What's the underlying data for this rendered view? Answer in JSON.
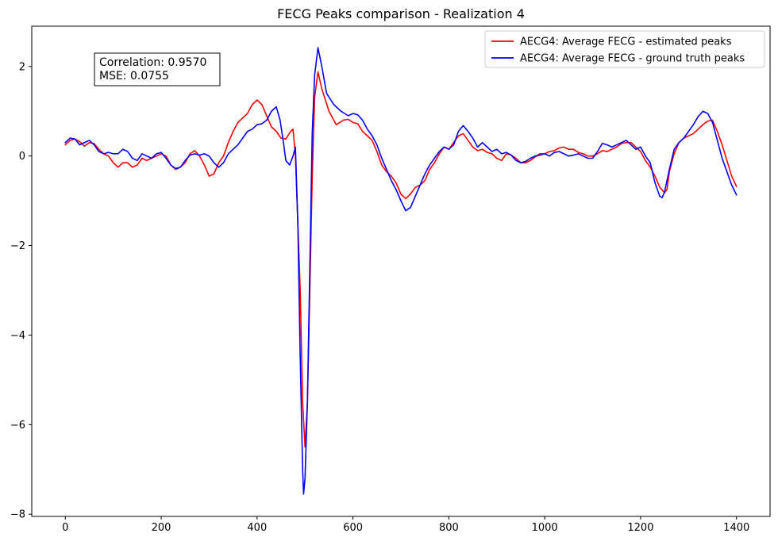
{
  "chart_data": {
    "type": "line",
    "title": "FECG Peaks comparison - Realization 4",
    "xlabel": "",
    "ylabel": "",
    "xlim": [
      -70,
      1470
    ],
    "ylim": [
      -8.05,
      2.9
    ],
    "xticks": [
      0,
      200,
      400,
      600,
      800,
      1000,
      1200,
      1400
    ],
    "xtick_labels": [
      "0",
      "200",
      "400",
      "600",
      "800",
      "1000",
      "1200",
      "1400"
    ],
    "yticks": [
      -8,
      -6,
      -4,
      -2,
      0,
      2
    ],
    "ytick_labels": [
      "−8",
      "−6",
      "−4",
      "−2",
      "0",
      "2"
    ],
    "grid": false,
    "legend_position": "top-right",
    "annotation": {
      "lines": [
        "Correlation: 0.9570",
        "MSE: 0.0755"
      ],
      "position": "top-left"
    },
    "series": [
      {
        "name": "AECG4: Average FECG - estimated peaks",
        "color": "#ff0000",
        "points": [
          [
            0,
            0.25
          ],
          [
            10,
            0.35
          ],
          [
            20,
            0.38
          ],
          [
            30,
            0.32
          ],
          [
            40,
            0.22
          ],
          [
            50,
            0.3
          ],
          [
            60,
            0.28
          ],
          [
            70,
            0.15
          ],
          [
            80,
            0.05
          ],
          [
            90,
            0.0
          ],
          [
            100,
            -0.15
          ],
          [
            110,
            -0.25
          ],
          [
            120,
            -0.15
          ],
          [
            130,
            -0.15
          ],
          [
            140,
            -0.25
          ],
          [
            150,
            -0.2
          ],
          [
            160,
            -0.05
          ],
          [
            170,
            -0.1
          ],
          [
            180,
            -0.05
          ],
          [
            190,
            0.0
          ],
          [
            200,
            0.05
          ],
          [
            210,
            0.0
          ],
          [
            220,
            -0.2
          ],
          [
            230,
            -0.3
          ],
          [
            240,
            -0.25
          ],
          [
            250,
            -0.15
          ],
          [
            260,
            0.05
          ],
          [
            270,
            0.12
          ],
          [
            280,
            0.0
          ],
          [
            290,
            -0.2
          ],
          [
            300,
            -0.45
          ],
          [
            310,
            -0.4
          ],
          [
            320,
            -0.15
          ],
          [
            330,
            0.0
          ],
          [
            340,
            0.3
          ],
          [
            350,
            0.55
          ],
          [
            360,
            0.75
          ],
          [
            370,
            0.85
          ],
          [
            380,
            0.95
          ],
          [
            390,
            1.15
          ],
          [
            400,
            1.25
          ],
          [
            410,
            1.15
          ],
          [
            420,
            0.9
          ],
          [
            430,
            0.65
          ],
          [
            440,
            0.55
          ],
          [
            450,
            0.4
          ],
          [
            460,
            0.38
          ],
          [
            470,
            0.55
          ],
          [
            475,
            0.6
          ],
          [
            480,
            0.0
          ],
          [
            490,
            -3.0
          ],
          [
            495,
            -5.5
          ],
          [
            500,
            -6.5
          ],
          [
            505,
            -5.5
          ],
          [
            510,
            -3.0
          ],
          [
            515,
            -0.5
          ],
          [
            520,
            1.3
          ],
          [
            527,
            1.88
          ],
          [
            535,
            1.5
          ],
          [
            550,
            1.0
          ],
          [
            565,
            0.7
          ],
          [
            580,
            0.8
          ],
          [
            590,
            0.82
          ],
          [
            600,
            0.75
          ],
          [
            610,
            0.72
          ],
          [
            620,
            0.55
          ],
          [
            630,
            0.45
          ],
          [
            640,
            0.35
          ],
          [
            650,
            0.1
          ],
          [
            660,
            -0.2
          ],
          [
            670,
            -0.35
          ],
          [
            680,
            -0.45
          ],
          [
            690,
            -0.6
          ],
          [
            700,
            -0.85
          ],
          [
            710,
            -0.95
          ],
          [
            720,
            -0.85
          ],
          [
            730,
            -0.7
          ],
          [
            740,
            -0.65
          ],
          [
            750,
            -0.55
          ],
          [
            760,
            -0.3
          ],
          [
            770,
            -0.15
          ],
          [
            780,
            0.05
          ],
          [
            790,
            0.2
          ],
          [
            800,
            0.15
          ],
          [
            810,
            0.3
          ],
          [
            820,
            0.45
          ],
          [
            830,
            0.5
          ],
          [
            840,
            0.35
          ],
          [
            850,
            0.2
          ],
          [
            860,
            0.12
          ],
          [
            870,
            0.15
          ],
          [
            880,
            0.08
          ],
          [
            890,
            0.05
          ],
          [
            900,
            -0.05
          ],
          [
            910,
            -0.1
          ],
          [
            920,
            0.05
          ],
          [
            930,
            0.02
          ],
          [
            940,
            -0.05
          ],
          [
            950,
            -0.15
          ],
          [
            960,
            -0.15
          ],
          [
            970,
            -0.1
          ],
          [
            980,
            -0.02
          ],
          [
            990,
            0.05
          ],
          [
            1000,
            0.05
          ],
          [
            1010,
            0.1
          ],
          [
            1020,
            0.12
          ],
          [
            1030,
            0.18
          ],
          [
            1040,
            0.2
          ],
          [
            1050,
            0.15
          ],
          [
            1060,
            0.15
          ],
          [
            1070,
            0.08
          ],
          [
            1080,
            0.05
          ],
          [
            1090,
            0.0
          ],
          [
            1100,
            0.0
          ],
          [
            1110,
            0.05
          ],
          [
            1120,
            0.12
          ],
          [
            1130,
            0.1
          ],
          [
            1140,
            0.15
          ],
          [
            1150,
            0.2
          ],
          [
            1160,
            0.28
          ],
          [
            1170,
            0.3
          ],
          [
            1180,
            0.3
          ],
          [
            1190,
            0.2
          ],
          [
            1200,
            0.1
          ],
          [
            1210,
            -0.1
          ],
          [
            1220,
            -0.25
          ],
          [
            1230,
            -0.45
          ],
          [
            1240,
            -0.7
          ],
          [
            1250,
            -0.82
          ],
          [
            1255,
            -0.75
          ],
          [
            1260,
            -0.35
          ],
          [
            1270,
            0.05
          ],
          [
            1280,
            0.3
          ],
          [
            1290,
            0.4
          ],
          [
            1300,
            0.45
          ],
          [
            1310,
            0.5
          ],
          [
            1320,
            0.6
          ],
          [
            1330,
            0.7
          ],
          [
            1340,
            0.78
          ],
          [
            1350,
            0.8
          ],
          [
            1360,
            0.55
          ],
          [
            1370,
            0.25
          ],
          [
            1380,
            -0.1
          ],
          [
            1390,
            -0.45
          ],
          [
            1400,
            -0.68
          ]
        ]
      },
      {
        "name": "AECG4: Average FECG - ground truth peaks",
        "color": "#0000ff",
        "points": [
          [
            0,
            0.3
          ],
          [
            10,
            0.4
          ],
          [
            20,
            0.38
          ],
          [
            30,
            0.25
          ],
          [
            40,
            0.3
          ],
          [
            50,
            0.35
          ],
          [
            60,
            0.25
          ],
          [
            70,
            0.1
          ],
          [
            80,
            0.05
          ],
          [
            90,
            0.08
          ],
          [
            100,
            0.05
          ],
          [
            110,
            0.05
          ],
          [
            120,
            0.15
          ],
          [
            130,
            0.1
          ],
          [
            140,
            -0.05
          ],
          [
            150,
            -0.1
          ],
          [
            160,
            0.05
          ],
          [
            170,
            0.0
          ],
          [
            180,
            -0.05
          ],
          [
            190,
            0.05
          ],
          [
            200,
            0.08
          ],
          [
            210,
            -0.05
          ],
          [
            220,
            -0.2
          ],
          [
            230,
            -0.28
          ],
          [
            240,
            -0.25
          ],
          [
            250,
            -0.1
          ],
          [
            260,
            0.02
          ],
          [
            270,
            0.05
          ],
          [
            280,
            0.02
          ],
          [
            290,
            0.05
          ],
          [
            300,
            0.0
          ],
          [
            310,
            -0.15
          ],
          [
            320,
            -0.25
          ],
          [
            330,
            -0.15
          ],
          [
            340,
            0.05
          ],
          [
            350,
            0.15
          ],
          [
            360,
            0.25
          ],
          [
            370,
            0.4
          ],
          [
            380,
            0.55
          ],
          [
            390,
            0.6
          ],
          [
            400,
            0.7
          ],
          [
            410,
            0.72
          ],
          [
            420,
            0.8
          ],
          [
            430,
            1.0
          ],
          [
            440,
            1.1
          ],
          [
            448,
            0.8
          ],
          [
            455,
            0.3
          ],
          [
            460,
            -0.1
          ],
          [
            468,
            -0.2
          ],
          [
            475,
            0.0
          ],
          [
            480,
            0.2
          ],
          [
            485,
            -1.5
          ],
          [
            490,
            -4.5
          ],
          [
            495,
            -7.0
          ],
          [
            497,
            -7.55
          ],
          [
            500,
            -7.2
          ],
          [
            505,
            -5.5
          ],
          [
            510,
            -2.5
          ],
          [
            515,
            0.5
          ],
          [
            520,
            1.8
          ],
          [
            527,
            2.42
          ],
          [
            535,
            2.0
          ],
          [
            545,
            1.4
          ],
          [
            560,
            1.15
          ],
          [
            575,
            1.0
          ],
          [
            590,
            0.9
          ],
          [
            600,
            0.95
          ],
          [
            610,
            0.92
          ],
          [
            620,
            0.8
          ],
          [
            630,
            0.6
          ],
          [
            640,
            0.45
          ],
          [
            650,
            0.25
          ],
          [
            660,
            -0.05
          ],
          [
            670,
            -0.3
          ],
          [
            680,
            -0.55
          ],
          [
            690,
            -0.75
          ],
          [
            700,
            -1.0
          ],
          [
            710,
            -1.22
          ],
          [
            720,
            -1.15
          ],
          [
            730,
            -0.9
          ],
          [
            740,
            -0.65
          ],
          [
            750,
            -0.4
          ],
          [
            760,
            -0.2
          ],
          [
            770,
            -0.05
          ],
          [
            780,
            0.1
          ],
          [
            790,
            0.2
          ],
          [
            800,
            0.15
          ],
          [
            810,
            0.25
          ],
          [
            820,
            0.55
          ],
          [
            830,
            0.68
          ],
          [
            840,
            0.55
          ],
          [
            850,
            0.4
          ],
          [
            860,
            0.2
          ],
          [
            870,
            0.3
          ],
          [
            880,
            0.2
          ],
          [
            890,
            0.1
          ],
          [
            900,
            0.15
          ],
          [
            910,
            0.05
          ],
          [
            920,
            0.08
          ],
          [
            930,
            0.02
          ],
          [
            940,
            -0.1
          ],
          [
            950,
            -0.15
          ],
          [
            960,
            -0.12
          ],
          [
            970,
            -0.05
          ],
          [
            980,
            0.0
          ],
          [
            990,
            0.02
          ],
          [
            1000,
            0.05
          ],
          [
            1010,
            0.0
          ],
          [
            1020,
            0.08
          ],
          [
            1030,
            0.1
          ],
          [
            1040,
            0.05
          ],
          [
            1050,
            0.0
          ],
          [
            1060,
            0.02
          ],
          [
            1070,
            0.05
          ],
          [
            1080,
            0.0
          ],
          [
            1090,
            -0.05
          ],
          [
            1100,
            -0.05
          ],
          [
            1110,
            0.1
          ],
          [
            1120,
            0.28
          ],
          [
            1130,
            0.25
          ],
          [
            1140,
            0.2
          ],
          [
            1150,
            0.25
          ],
          [
            1160,
            0.3
          ],
          [
            1170,
            0.35
          ],
          [
            1180,
            0.25
          ],
          [
            1190,
            0.15
          ],
          [
            1200,
            0.2
          ],
          [
            1210,
            0.0
          ],
          [
            1220,
            -0.15
          ],
          [
            1230,
            -0.6
          ],
          [
            1240,
            -0.9
          ],
          [
            1245,
            -0.93
          ],
          [
            1250,
            -0.8
          ],
          [
            1260,
            -0.3
          ],
          [
            1270,
            0.15
          ],
          [
            1280,
            0.3
          ],
          [
            1290,
            0.4
          ],
          [
            1300,
            0.55
          ],
          [
            1310,
            0.7
          ],
          [
            1320,
            0.88
          ],
          [
            1330,
            1.0
          ],
          [
            1340,
            0.95
          ],
          [
            1350,
            0.75
          ],
          [
            1360,
            0.35
          ],
          [
            1370,
            -0.05
          ],
          [
            1380,
            -0.35
          ],
          [
            1390,
            -0.65
          ],
          [
            1400,
            -0.87
          ]
        ]
      }
    ]
  }
}
